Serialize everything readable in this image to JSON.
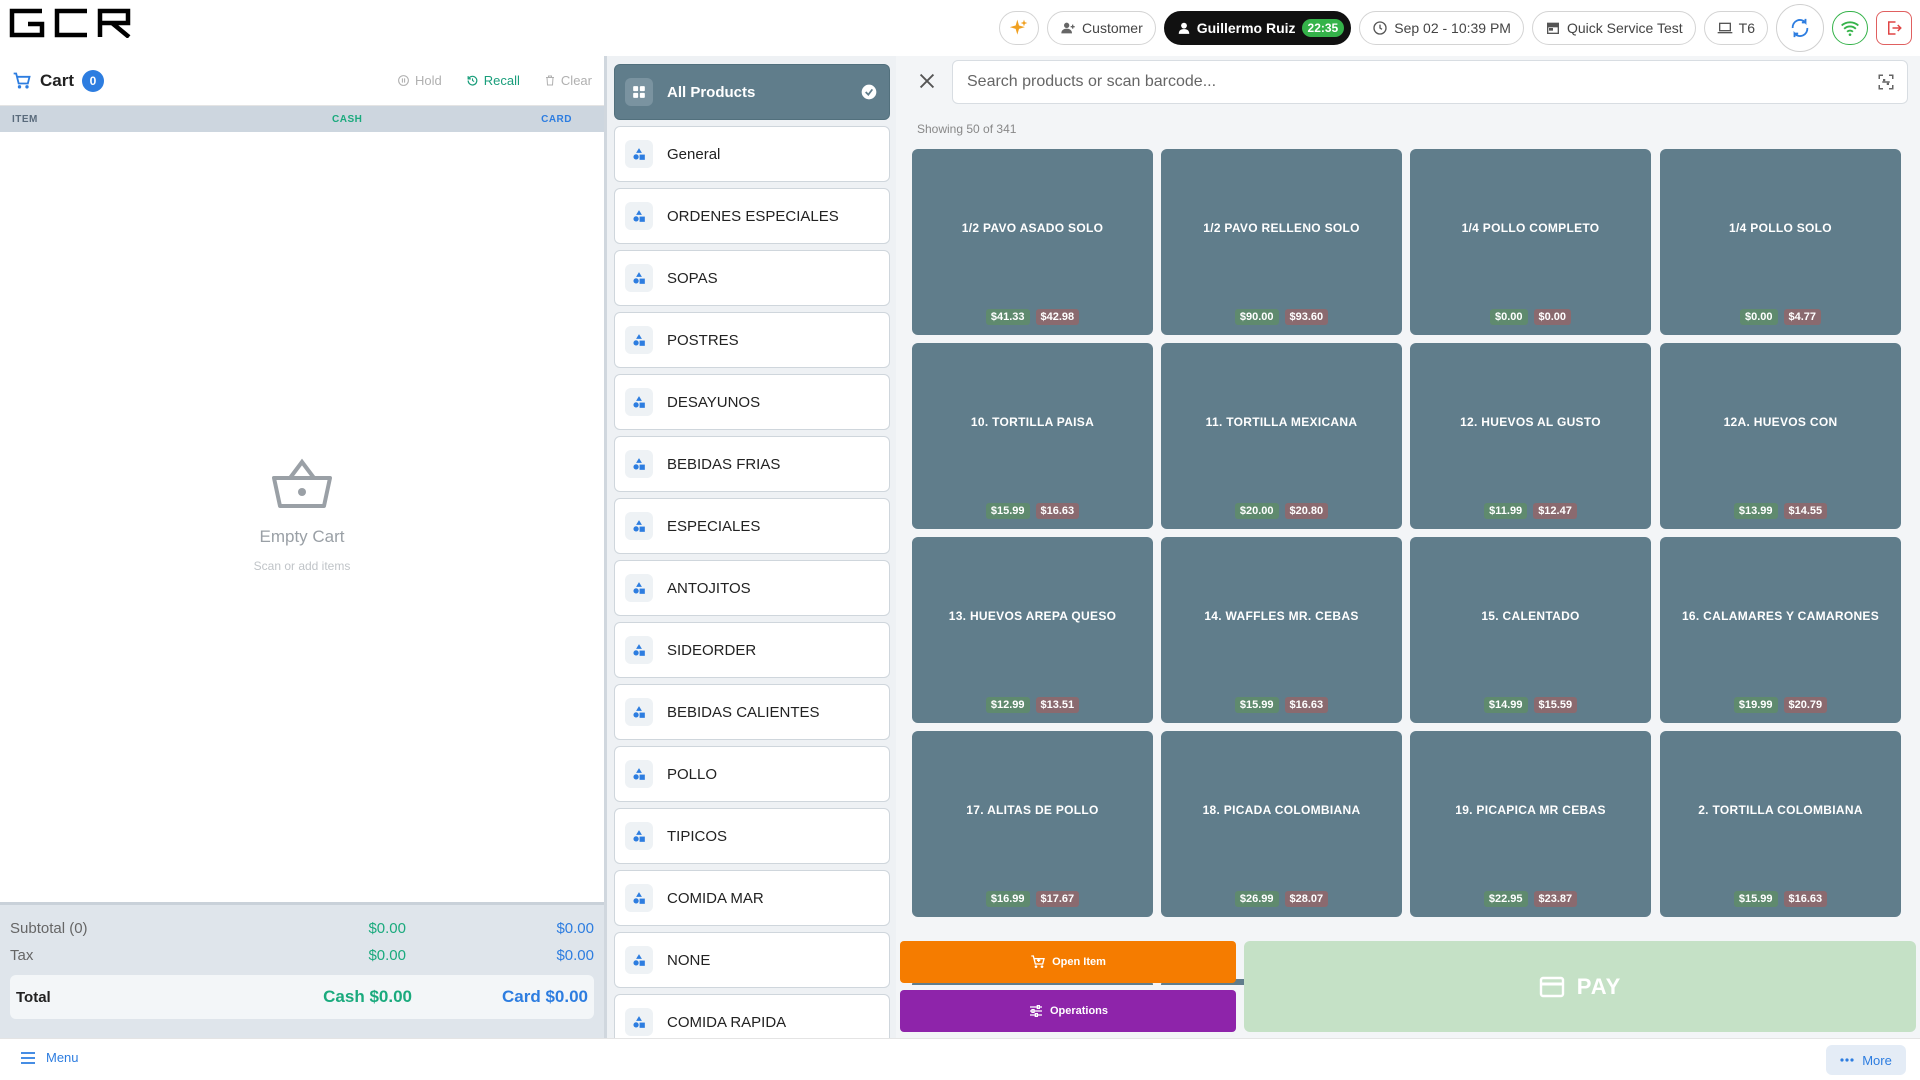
{
  "header": {
    "logo_text": "GCR",
    "customer_label": "Customer",
    "user_name": "Guillermo Ruiz",
    "user_badge": "22:35",
    "datetime": "Sep 02 - 10:39 PM",
    "store": "Quick Service Test",
    "terminal": "T6"
  },
  "cart": {
    "title": "Cart",
    "count": "0",
    "hold_label": "Hold",
    "recall_label": "Recall",
    "clear_label": "Clear",
    "col_item": "ITEM",
    "col_cash": "CASH",
    "col_card": "CARD",
    "empty_title": "Empty Cart",
    "empty_sub": "Scan or add items",
    "subtotal_label": "Subtotal (0)",
    "subtotal_cash": "$0.00",
    "subtotal_card": "$0.00",
    "tax_label": "Tax",
    "tax_cash": "$0.00",
    "tax_card": "$0.00",
    "total_label": "Total",
    "total_cash": "Cash $0.00",
    "total_card": "Card $0.00"
  },
  "categories": [
    {
      "label": "All Products"
    },
    {
      "label": "General"
    },
    {
      "label": "ORDENES ESPECIALES"
    },
    {
      "label": "SOPAS"
    },
    {
      "label": "POSTRES"
    },
    {
      "label": "DESAYUNOS"
    },
    {
      "label": "BEBIDAS FRIAS"
    },
    {
      "label": "ESPECIALES"
    },
    {
      "label": "ANTOJITOS"
    },
    {
      "label": "SIDEORDER"
    },
    {
      "label": "BEBIDAS CALIENTES"
    },
    {
      "label": "POLLO"
    },
    {
      "label": "TIPICOS"
    },
    {
      "label": "COMIDA MAR"
    },
    {
      "label": "NONE"
    },
    {
      "label": "COMIDA RAPIDA"
    }
  ],
  "search": {
    "placeholder": "Search products or scan barcode..."
  },
  "showing": "Showing 50 of 341",
  "products": [
    {
      "name": "1/2 PAVO ASADO SOLO",
      "cash": "$41.33",
      "card": "$42.98"
    },
    {
      "name": "1/2 PAVO RELLENO SOLO",
      "cash": "$90.00",
      "card": "$93.60"
    },
    {
      "name": "1/4 POLLO COMPLETO",
      "cash": "$0.00",
      "card": "$0.00"
    },
    {
      "name": "1/4 POLLO SOLO",
      "cash": "$0.00",
      "card": "$4.77"
    },
    {
      "name": "10. TORTILLA PAISA",
      "cash": "$15.99",
      "card": "$16.63"
    },
    {
      "name": "11. TORTILLA MEXICANA",
      "cash": "$20.00",
      "card": "$20.80"
    },
    {
      "name": "12. HUEVOS AL GUSTO",
      "cash": "$11.99",
      "card": "$12.47"
    },
    {
      "name": "12A. HUEVOS CON",
      "cash": "$13.99",
      "card": "$14.55"
    },
    {
      "name": "13. HUEVOS AREPA QUESO",
      "cash": "$12.99",
      "card": "$13.51"
    },
    {
      "name": "14. WAFFLES  MR. CEBAS",
      "cash": "$15.99",
      "card": "$16.63"
    },
    {
      "name": "15. CALENTADO",
      "cash": "$14.99",
      "card": "$15.59"
    },
    {
      "name": "16. CALAMARES Y CAMARONES",
      "cash": "$19.99",
      "card": "$20.79"
    },
    {
      "name": "17. ALITAS  DE POLLO",
      "cash": "$16.99",
      "card": "$17.67"
    },
    {
      "name": "18. PICADA COLOMBIANA",
      "cash": "$26.99",
      "card": "$28.07"
    },
    {
      "name": "19. PICAPICA MR CEBAS",
      "cash": "$22.95",
      "card": "$23.87"
    },
    {
      "name": "2. TORTILLA COLOMBIANA",
      "cash": "$15.99",
      "card": "$16.63"
    }
  ],
  "actions": {
    "open_item": "Open Item",
    "operations": "Operations",
    "pay": "PAY"
  },
  "footer": {
    "menu": "Menu",
    "more": "More"
  },
  "colors": {
    "tile": "#607d8b",
    "cash": "#1aaa7d",
    "card": "#2d7de0",
    "open_item": "#f57c00",
    "operations": "#8e24aa",
    "pay": "#c5e1c6"
  }
}
